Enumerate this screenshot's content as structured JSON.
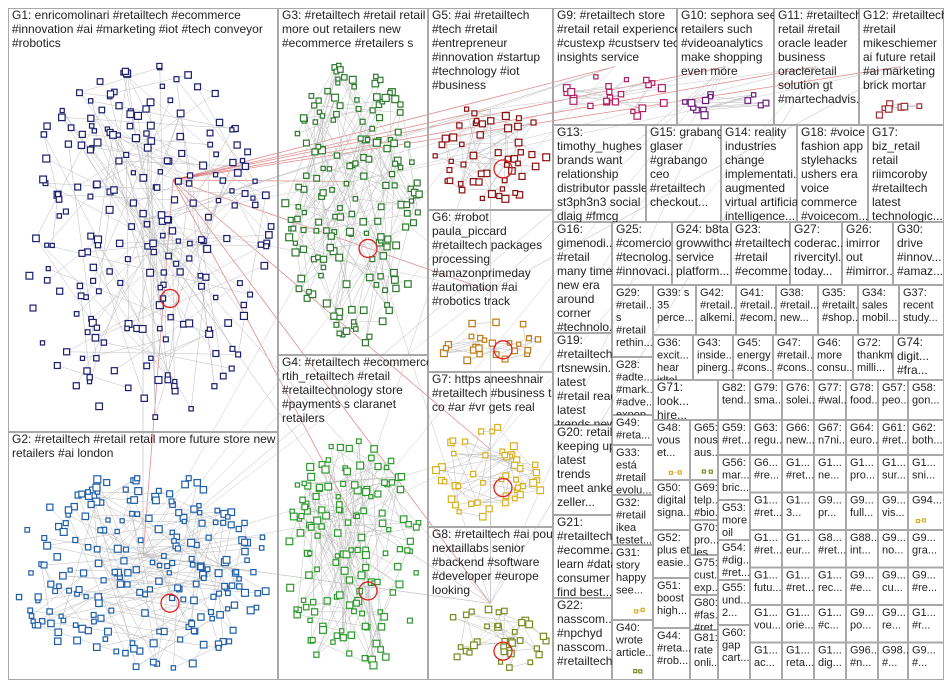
{
  "groups": [
    {
      "lines": [
        "G1: enricomolinari #retailtech #ecommerce",
        "#innovation #ai #marketing #iot #tech conveyor",
        "#robotics"
      ]
    },
    {
      "lines": [
        "G2: #retailtech #retail retail more future store new",
        "retailers #ai london"
      ]
    },
    {
      "lines": [
        "G3: #retailtech #retail retail",
        "more out retailers new",
        "#ecommerce #retailers s"
      ]
    },
    {
      "lines": [
        "G4: #retailtech #ecommerce",
        "rtih_retailtech #retail",
        "#retailtechnology store",
        "#payments s claranet",
        "retailers"
      ]
    },
    {
      "lines": [
        "G5: #ai #retailtech",
        "#tech #retail",
        "#entrepreneur",
        "#innovation #startup",
        "#technology #iot",
        "#business"
      ]
    },
    {
      "lines": [
        "G6: #robot",
        "paula_piccard",
        "#retailtech packages",
        "processing",
        "#amazonprimeday",
        "#automation #ai",
        "#robotics track"
      ]
    },
    {
      "lines": [
        "G7: https aneeshnair",
        "#retailtech #business t",
        "co #ar #vr gets real"
      ]
    },
    {
      "lines": [
        "G8: #retailtech #ai pour",
        "nextaillabs senior",
        "#backend #software",
        "#developer #europe",
        "looking"
      ]
    },
    {
      "lines": [
        "G9: #retailtech store",
        "#retail retail experience",
        "#custexp #custserv tech",
        "insights service"
      ]
    },
    {
      "lines": [
        "G10: sephora see",
        "retailers such",
        "#videoanalytics",
        "make shopping",
        "even more"
      ]
    },
    {
      "lines": [
        "G11: #retailtech",
        "retail #retail",
        "oracle leader",
        "business",
        "oracleretail",
        "solution gt",
        "#martechadvis..."
      ]
    },
    {
      "lines": [
        "G12: #retailtech",
        "#retail",
        "mikeschiemer",
        "ai future retail",
        "#ai marketing",
        "brick mortar"
      ]
    },
    {
      "lines": [
        "G13:",
        "timothy_hughes",
        "brands want",
        "relationship",
        "distributor passle",
        "st3ph3n3 social",
        "dlaig #fmcg"
      ]
    },
    {
      "lines": [
        "G15: grabango",
        "glaser",
        "#grabango",
        "ceo",
        "#retailtech",
        "checkout..."
      ]
    },
    {
      "lines": [
        "G14: reality",
        "industries",
        "change",
        "implementati...",
        "augmented",
        "virtual artificial",
        "intelligence..."
      ]
    },
    {
      "lines": [
        "G18: #voice",
        "fashion app",
        "stylehacks",
        "ushers era",
        "voice",
        "commerce",
        "#voicecom..."
      ]
    },
    {
      "lines": [
        "G17:",
        "biz_retail",
        "retail",
        "riimcoroby",
        "#retailtech",
        "latest",
        "technologic..."
      ]
    },
    {
      "lines": [
        "G16:",
        "gimenodi...",
        "#retail",
        "many times",
        "new era",
        "around",
        "corner",
        "#technolo..."
      ]
    },
    {
      "lines": [
        "G25:",
        "#comercio",
        "#tecnolog...",
        "#innovaci..."
      ]
    },
    {
      "lines": [
        "G24: b8ta",
        "growwithco",
        "service",
        "platform..."
      ]
    },
    {
      "lines": [
        "G23:",
        "#retailtech",
        "#retail",
        "#ecomme..."
      ]
    },
    {
      "lines": [
        "G27:",
        "coderac...",
        "rivercityl...",
        "today..."
      ]
    },
    {
      "lines": [
        "G26:",
        "imirror",
        "out",
        "#imirror..."
      ]
    },
    {
      "lines": [
        "G30:",
        "drive",
        "#innov...",
        "#amaz..."
      ]
    },
    {
      "lines": [
        "G29:",
        "#retail...",
        "s",
        "#retail",
        "rethin..."
      ]
    },
    {
      "lines": [
        "G39: s",
        "35",
        "perce..."
      ]
    },
    {
      "lines": [
        "G42:",
        "#retail...",
        "alkemi..."
      ]
    },
    {
      "lines": [
        "G41:",
        "#retail...",
        "#ecom..."
      ]
    },
    {
      "lines": [
        "G38:",
        "#retail...",
        "new..."
      ]
    },
    {
      "lines": [
        "G35:",
        "#retailt...",
        "#shop..."
      ]
    },
    {
      "lines": [
        "G34:",
        "sales",
        "mobil..."
      ]
    },
    {
      "lines": [
        "G37:",
        "recent",
        "study..."
      ]
    },
    {
      "lines": [
        "G19:",
        "#retailtech",
        "rtsnewsin...",
        "latest",
        "#retail read",
        "latest",
        "trends new",
        "#personali..."
      ]
    },
    {
      "lines": [
        "G20: retail",
        "keeping up",
        "latest",
        "trends",
        "meet anke",
        "zeller..."
      ]
    },
    {
      "lines": [
        "G21:",
        "#retailtech",
        "#ecomme...",
        "learn #data",
        "consumer",
        "find best..."
      ]
    },
    {
      "lines": [
        "G22:",
        "nasscom...",
        "#npchyd",
        "nasscom...",
        "#retailtech..."
      ]
    },
    {
      "lines": [
        "G28:",
        "#adte...",
        "#mark...",
        "#adve...",
        "expop..."
      ]
    },
    {
      "lines": [
        "G49:",
        "#reta..."
      ]
    },
    {
      "lines": [
        "G33:",
        "está",
        "#retail",
        "evolu..."
      ]
    },
    {
      "lines": [
        "G32:",
        "#retail",
        "ikea",
        "testet..."
      ]
    },
    {
      "lines": [
        "G31:",
        "story",
        "happy",
        "see..."
      ]
    },
    {
      "lines": [
        "G40:",
        "wrote",
        "article..."
      ]
    },
    {
      "lines": [
        "G36:",
        "excit...",
        "hear",
        "irltel..."
      ]
    },
    {
      "lines": [
        "G43:",
        "inside...",
        "pinerg..."
      ]
    },
    {
      "lines": [
        "G45:",
        "energy",
        "#cons..."
      ]
    },
    {
      "lines": [
        "G47:",
        "#retail...",
        "#cons..."
      ]
    },
    {
      "lines": [
        "G46:",
        "more",
        "consu..."
      ]
    },
    {
      "lines": [
        "G72:",
        "thankme...",
        "milli..."
      ]
    },
    {
      "lines": [
        "G74:",
        "digit...",
        "#fra..."
      ]
    },
    {
      "lines": [
        "G71:",
        "look...",
        "hire..."
      ]
    },
    {
      "lines": [
        "G82:",
        "tend..."
      ]
    },
    {
      "lines": [
        "G79:",
        "sma..."
      ]
    },
    {
      "lines": [
        "G76:",
        "solei..."
      ]
    },
    {
      "lines": [
        "G77:",
        "#wal..."
      ]
    },
    {
      "lines": [
        "G78:",
        "food..."
      ]
    },
    {
      "lines": [
        "G57:",
        "peo..."
      ]
    },
    {
      "lines": [
        "G58:",
        "gon..."
      ]
    },
    {
      "lines": [
        "G48:",
        "vous",
        "et..."
      ]
    },
    {
      "lines": [
        "G65:",
        "nous",
        "aus..."
      ]
    },
    {
      "lines": [
        "G59:",
        "#ret..."
      ]
    },
    {
      "lines": [
        "G63:",
        "regu..."
      ]
    },
    {
      "lines": [
        "G66:",
        "new..."
      ]
    },
    {
      "lines": [
        "G67:",
        "n7ni..."
      ]
    },
    {
      "lines": [
        "G64:",
        "euro..."
      ]
    },
    {
      "lines": [
        "G61:",
        "#ret..."
      ]
    },
    {
      "lines": [
        "G62:",
        "both..."
      ]
    },
    {
      "lines": [
        "G50:",
        "digital",
        "signa..."
      ]
    },
    {
      "lines": [
        "G52:",
        "plus et",
        "easie..."
      ]
    },
    {
      "lines": [
        "G51:",
        "boost",
        "high..."
      ]
    },
    {
      "lines": [
        "G44:",
        "#reta...",
        "#rob..."
      ]
    },
    {
      "lines": [
        "G69:",
        "telp...",
        "#bio..."
      ]
    },
    {
      "lines": [
        "G70:",
        "pro...",
        "les"
      ]
    },
    {
      "lines": [
        "G75:",
        "cust...",
        "exp..."
      ]
    },
    {
      "lines": [
        "G80:",
        "#fas...",
        "#ret..."
      ]
    },
    {
      "lines": [
        "G81:",
        "rate",
        "onli..."
      ]
    },
    {
      "lines": [
        "G56:",
        "mar...",
        "bric..."
      ]
    },
    {
      "lines": [
        "G53:",
        "more",
        "oil"
      ]
    },
    {
      "lines": [
        "G54:",
        "#dig...",
        "#ret..."
      ]
    },
    {
      "lines": [
        "G55:",
        "und...",
        "2..."
      ]
    },
    {
      "lines": [
        "G60:",
        "gap",
        "cart..."
      ]
    },
    {
      "lines": [
        "G6...",
        "#re..."
      ]
    },
    {
      "lines": [
        "G1...",
        "#ret..."
      ]
    },
    {
      "lines": [
        "G1...",
        "ne..."
      ]
    },
    {
      "lines": [
        "G1...",
        "pro..."
      ]
    },
    {
      "lines": [
        "G1...",
        "sur..."
      ]
    },
    {
      "lines": [
        "G1...",
        "sni..."
      ]
    },
    {
      "lines": [
        "G1...",
        "#ret..."
      ]
    },
    {
      "lines": [
        "G1...",
        "3..."
      ]
    },
    {
      "lines": [
        "G9...",
        "pr..."
      ]
    },
    {
      "lines": [
        "G9...",
        "full..."
      ]
    },
    {
      "lines": [
        "G9...",
        "vis..."
      ]
    },
    {
      "lines": [
        "G94..."
      ]
    },
    {
      "lines": [
        "G1...",
        "#ret..."
      ]
    },
    {
      "lines": [
        "G1...",
        "eur..."
      ]
    },
    {
      "lines": [
        "G8...",
        "#ret..."
      ]
    },
    {
      "lines": [
        "G88...",
        "int..."
      ]
    },
    {
      "lines": [
        "G9...",
        "no..."
      ]
    },
    {
      "lines": [
        "G9...",
        "gra..."
      ]
    },
    {
      "lines": [
        "G1...",
        "futu..."
      ]
    },
    {
      "lines": [
        "G1...",
        "#ret..."
      ]
    },
    {
      "lines": [
        "G1...",
        "rec..."
      ]
    },
    {
      "lines": [
        "G9...",
        "#e..."
      ]
    },
    {
      "lines": [
        "G9...",
        "cu..."
      ]
    },
    {
      "lines": [
        "G9...",
        "#re..."
      ]
    },
    {
      "lines": [
        "G1...",
        "vou..."
      ]
    },
    {
      "lines": [
        "G1...",
        "orie..."
      ]
    },
    {
      "lines": [
        "G1...",
        "#c..."
      ]
    },
    {
      "lines": [
        "G9...",
        "po..."
      ]
    },
    {
      "lines": [
        "G9...",
        "re..."
      ]
    },
    {
      "lines": [
        "G1...",
        "#r..."
      ]
    },
    {
      "lines": [
        "G1...",
        "ac..."
      ]
    },
    {
      "lines": [
        "G1...",
        "reta..."
      ]
    },
    {
      "lines": [
        "G1...",
        "dig..."
      ]
    },
    {
      "lines": [
        "G96...",
        "#n..."
      ]
    },
    {
      "lines": [
        "G98...",
        "#..."
      ]
    },
    {
      "lines": [
        "G9...",
        "#..."
      ]
    }
  ]
}
